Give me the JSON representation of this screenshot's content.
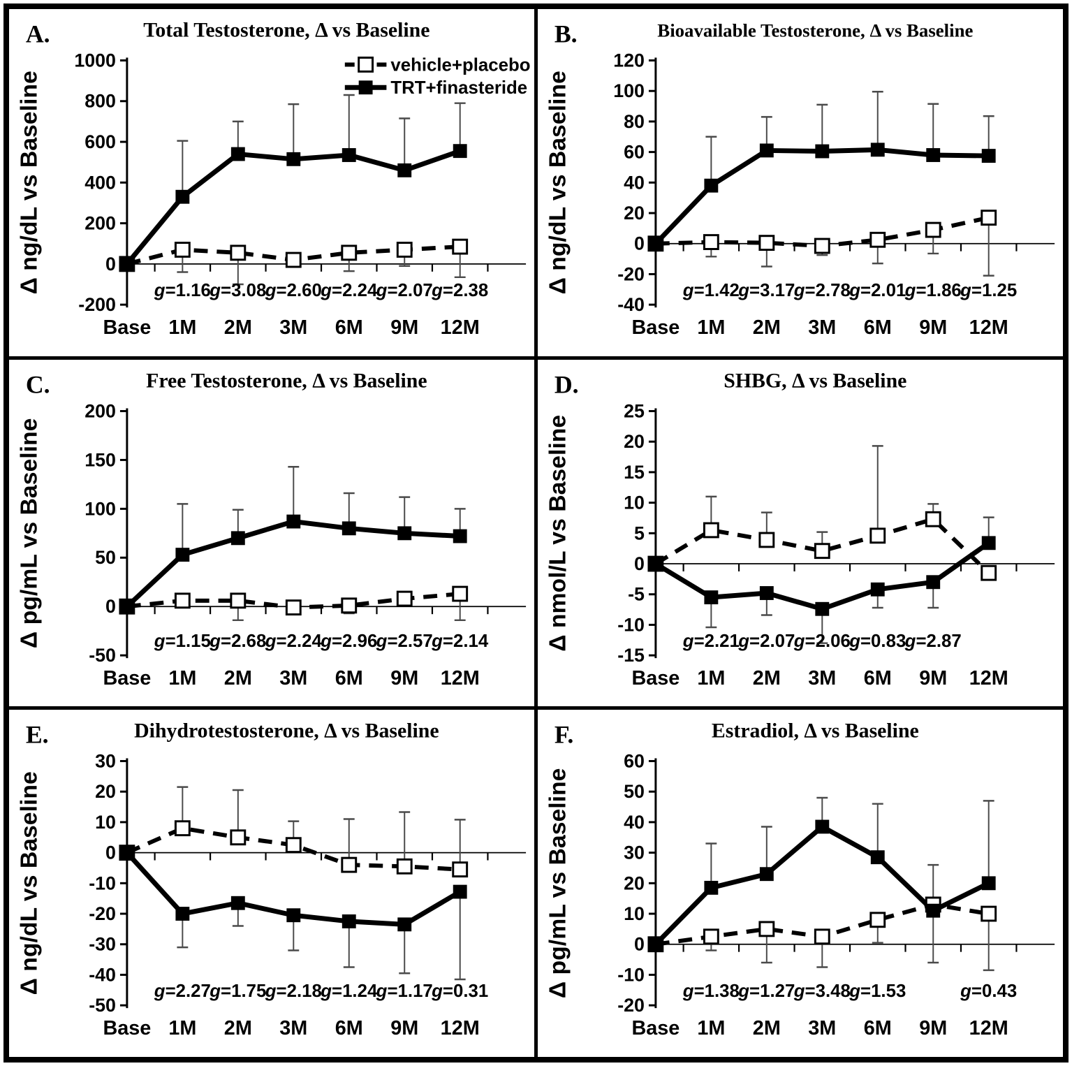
{
  "figure": {
    "background_color": "#ffffff",
    "border_color": "#000000",
    "line_color": "#000000",
    "error_bar_color": "#4a4a4a",
    "effect_size_symbol": "g",
    "categories": [
      "Base",
      "1M",
      "2M",
      "3M",
      "6M",
      "9M",
      "12M"
    ],
    "legend": {
      "position": "top-right-panel-A",
      "items": [
        {
          "label": "vehicle+placebo",
          "series": "placebo",
          "line": "dashed",
          "marker": "open-square"
        },
        {
          "label": "TRT+finasteride",
          "series": "trt",
          "line": "solid",
          "marker": "filled-square"
        }
      ]
    }
  },
  "chart_data": [
    {
      "type": "line",
      "panel_label": "A.",
      "title": "Total Testosterone, Δ vs Baseline",
      "ylabel": "Δ ng/dL vs Baseline",
      "ylim": [
        -200,
        1000
      ],
      "yticks": [
        1000,
        800,
        600,
        400,
        200,
        0,
        -200
      ],
      "categories": [
        "Base",
        "1M",
        "2M",
        "3M",
        "6M",
        "9M",
        "12M"
      ],
      "show_legend": true,
      "grid": false,
      "series": [
        {
          "key": "placebo",
          "name": "vehicle+placebo",
          "line": "dashed",
          "marker": "open-square",
          "values": [
            0,
            70,
            55,
            20,
            55,
            70,
            85
          ],
          "error_caps": [
            null,
            -40,
            -100,
            -12,
            -35,
            -10,
            -65
          ]
        },
        {
          "key": "trt",
          "name": "TRT+finasteride",
          "line": "solid",
          "marker": "filled-square",
          "values": [
            0,
            330,
            540,
            515,
            535,
            460,
            555
          ],
          "error_caps": [
            null,
            605,
            700,
            785,
            830,
            715,
            790
          ]
        }
      ],
      "effect_sizes": {
        "symbol": "g",
        "values": [
          null,
          "1.16",
          "3.08",
          "2.60",
          "2.24",
          "2.07",
          "2.38"
        ]
      }
    },
    {
      "type": "line",
      "panel_label": "B.",
      "title": "Bioavailable Testosterone, Δ vs Baseline",
      "ylabel": "Δ ng/dL vs Baseline",
      "ylim": [
        -40,
        120
      ],
      "yticks": [
        120,
        100,
        80,
        60,
        40,
        20,
        0,
        -20,
        -40
      ],
      "categories": [
        "Base",
        "1M",
        "2M",
        "3M",
        "6M",
        "9M",
        "12M"
      ],
      "show_legend": false,
      "grid": false,
      "series": [
        {
          "key": "placebo",
          "name": "vehicle+placebo",
          "line": "dashed",
          "marker": "open-square",
          "values": [
            0,
            1,
            0.5,
            -1.5,
            2.5,
            9,
            17
          ],
          "error_caps": [
            null,
            -8.5,
            -15,
            -7.5,
            -13,
            -6.5,
            -21
          ]
        },
        {
          "key": "trt",
          "name": "TRT+finasteride",
          "line": "solid",
          "marker": "filled-square",
          "values": [
            0,
            38,
            61,
            60.5,
            61.5,
            58,
            57.5
          ],
          "error_caps": [
            null,
            70,
            83,
            91,
            99.5,
            91.5,
            83.5
          ]
        }
      ],
      "effect_sizes": {
        "symbol": "g",
        "values": [
          null,
          "1.42",
          "3.17",
          "2.78",
          "2.01",
          "1.86",
          "1.25"
        ]
      }
    },
    {
      "type": "line",
      "panel_label": "C.",
      "title": "Free Testosterone, Δ vs Baseline",
      "ylabel": "Δ pg/mL vs Baseline",
      "ylim": [
        -50,
        200
      ],
      "yticks": [
        200,
        150,
        100,
        50,
        0,
        -50
      ],
      "categories": [
        "Base",
        "1M",
        "2M",
        "3M",
        "6M",
        "9M",
        "12M"
      ],
      "show_legend": false,
      "grid": false,
      "series": [
        {
          "key": "placebo",
          "name": "vehicle+placebo",
          "line": "dashed",
          "marker": "open-square",
          "values": [
            0,
            6,
            6,
            -1,
            1,
            8,
            13
          ],
          "error_caps": [
            null,
            -1,
            -14,
            -6.5,
            -7,
            2,
            -14
          ]
        },
        {
          "key": "trt",
          "name": "TRT+finasteride",
          "line": "solid",
          "marker": "filled-square",
          "values": [
            0,
            53,
            70,
            87,
            80,
            75,
            72
          ],
          "error_caps": [
            null,
            105,
            99,
            143,
            116,
            112,
            100
          ]
        }
      ],
      "effect_sizes": {
        "symbol": "g",
        "values": [
          null,
          "1.15",
          "2.68",
          "2.24",
          "2.96",
          "2.57",
          "2.14"
        ]
      }
    },
    {
      "type": "line",
      "panel_label": "D.",
      "title": "SHBG, Δ vs Baseline",
      "ylabel": "Δ nmol/L vs Baseline",
      "ylim": [
        -15,
        25
      ],
      "yticks": [
        25,
        20,
        15,
        10,
        5,
        0,
        -5,
        -10,
        -15
      ],
      "categories": [
        "Base",
        "1M",
        "2M",
        "3M",
        "6M",
        "9M",
        "12M"
      ],
      "show_legend": false,
      "grid": false,
      "series": [
        {
          "key": "placebo",
          "name": "vehicle+placebo",
          "line": "dashed",
          "marker": "open-square",
          "values": [
            0,
            5.5,
            3.9,
            2.1,
            4.6,
            7.3,
            -1.5
          ],
          "error_caps": [
            null,
            11,
            8.4,
            5.2,
            19.3,
            9.8,
            null
          ]
        },
        {
          "key": "trt",
          "name": "TRT+finasteride",
          "line": "solid",
          "marker": "filled-square",
          "values": [
            0,
            -5.5,
            -4.8,
            -7.4,
            -4.2,
            -3,
            3.4
          ],
          "error_caps": [
            null,
            -10.4,
            -8.4,
            -13,
            -7.2,
            -7.2,
            7.6
          ]
        }
      ],
      "effect_sizes": {
        "symbol": "g",
        "values": [
          null,
          "2.21",
          "2.07",
          "2.06",
          "0.83",
          "2.87",
          null
        ]
      }
    },
    {
      "type": "line",
      "panel_label": "E.",
      "title": "Dihydrotestosterone, Δ vs Baseline",
      "ylabel": "Δ ng/dL vs Baseline",
      "ylim": [
        -50,
        30
      ],
      "yticks": [
        30,
        20,
        10,
        0,
        -10,
        -20,
        -30,
        -40,
        -50
      ],
      "categories": [
        "Base",
        "1M",
        "2M",
        "3M",
        "6M",
        "9M",
        "12M"
      ],
      "show_legend": false,
      "grid": false,
      "series": [
        {
          "key": "placebo",
          "name": "vehicle+placebo",
          "line": "dashed",
          "marker": "open-square",
          "values": [
            0,
            8,
            5,
            2.5,
            -4,
            -4.5,
            -5.5
          ],
          "error_caps": [
            null,
            21.5,
            20.5,
            10.3,
            11,
            13.3,
            10.8
          ]
        },
        {
          "key": "trt",
          "name": "TRT+finasteride",
          "line": "solid",
          "marker": "filled-square",
          "values": [
            0,
            -20,
            -16.5,
            -20.5,
            -22.5,
            -23.5,
            -12.8
          ],
          "error_caps": [
            null,
            -31,
            -24,
            -32,
            -37.5,
            -39.5,
            -41.5
          ]
        }
      ],
      "effect_sizes": {
        "symbol": "g",
        "values": [
          null,
          "2.27",
          "1.75",
          "2.18",
          "1.24",
          "1.17",
          "0.31"
        ]
      }
    },
    {
      "type": "line",
      "panel_label": "F.",
      "title": "Estradiol, Δ vs Baseline",
      "ylabel": "Δ pg/mL vs Baseline",
      "ylim": [
        -20,
        60
      ],
      "yticks": [
        60,
        50,
        40,
        30,
        20,
        10,
        0,
        -10,
        -20
      ],
      "categories": [
        "Base",
        "1M",
        "2M",
        "3M",
        "6M",
        "9M",
        "12M"
      ],
      "show_legend": false,
      "grid": false,
      "series": [
        {
          "key": "placebo",
          "name": "vehicle+placebo",
          "line": "dashed",
          "marker": "open-square",
          "values": [
            0,
            2.5,
            5,
            2.5,
            8,
            13,
            10
          ],
          "error_caps": [
            null,
            -2,
            -6,
            -7.5,
            0.5,
            -6,
            -8.5
          ]
        },
        {
          "key": "trt",
          "name": "TRT+finasteride",
          "line": "solid",
          "marker": "filled-square",
          "values": [
            0,
            18.5,
            23,
            38.5,
            28.5,
            11,
            20
          ],
          "error_caps": [
            null,
            33,
            38.5,
            48,
            46,
            26,
            47
          ]
        }
      ],
      "effect_sizes": {
        "symbol": "g",
        "values": [
          null,
          "1.38",
          "1.27",
          "3.48",
          "1.53",
          null,
          "0.43"
        ]
      }
    }
  ]
}
